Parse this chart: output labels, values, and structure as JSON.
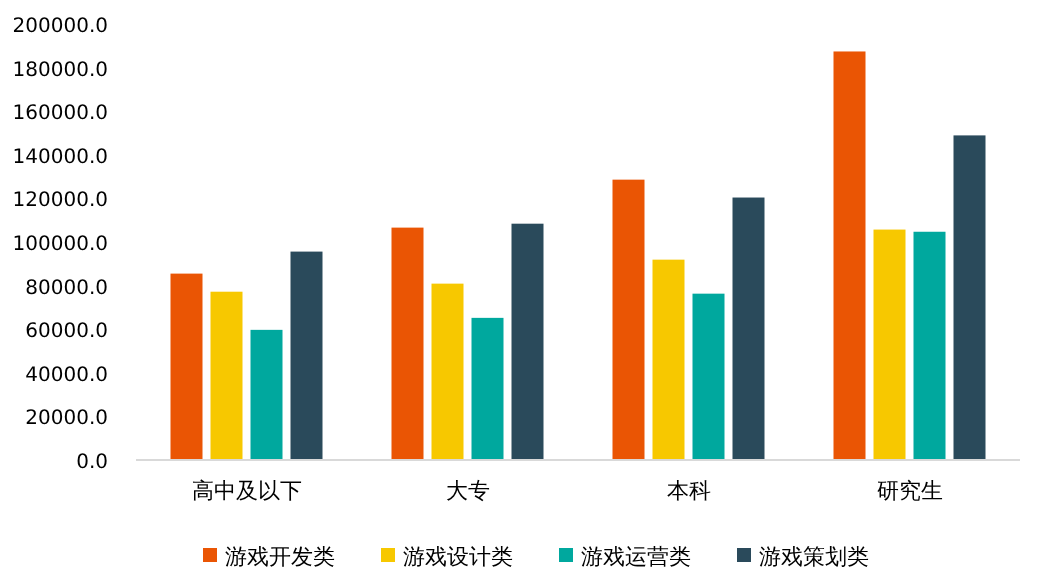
{
  "chart_data": {
    "type": "bar",
    "categories": [
      "高中及以下",
      "大专",
      "本科",
      "研究生"
    ],
    "series": [
      {
        "name": "游戏开发类",
        "color": "#ea5504",
        "values": [
          85500,
          106600,
          128600,
          187400
        ]
      },
      {
        "name": "游戏设计类",
        "color": "#f7c800",
        "values": [
          77200,
          80900,
          91900,
          105700
        ]
      },
      {
        "name": "游戏运营类",
        "color": "#00a89e",
        "values": [
          59700,
          65200,
          76300,
          104700
        ]
      },
      {
        "name": "游戏策划类",
        "color": "#2a4a5b",
        "values": [
          95600,
          108400,
          120400,
          148900
        ]
      }
    ],
    "ylim": [
      0,
      200000
    ],
    "yticks": [
      {
        "value": 0,
        "label": "0.0"
      },
      {
        "value": 20000,
        "label": "20000.0"
      },
      {
        "value": 40000,
        "label": "40000.0"
      },
      {
        "value": 60000,
        "label": "60000.0"
      },
      {
        "value": 80000,
        "label": "80000.0"
      },
      {
        "value": 100000,
        "label": "100000.0"
      },
      {
        "value": 120000,
        "label": "120000.0"
      },
      {
        "value": 140000,
        "label": "140000.0"
      },
      {
        "value": 160000,
        "label": "160000.0"
      },
      {
        "value": 180000,
        "label": "180000.0"
      },
      {
        "value": 200000,
        "label": "200000.0"
      }
    ],
    "grid": false,
    "legend": "bottom"
  }
}
